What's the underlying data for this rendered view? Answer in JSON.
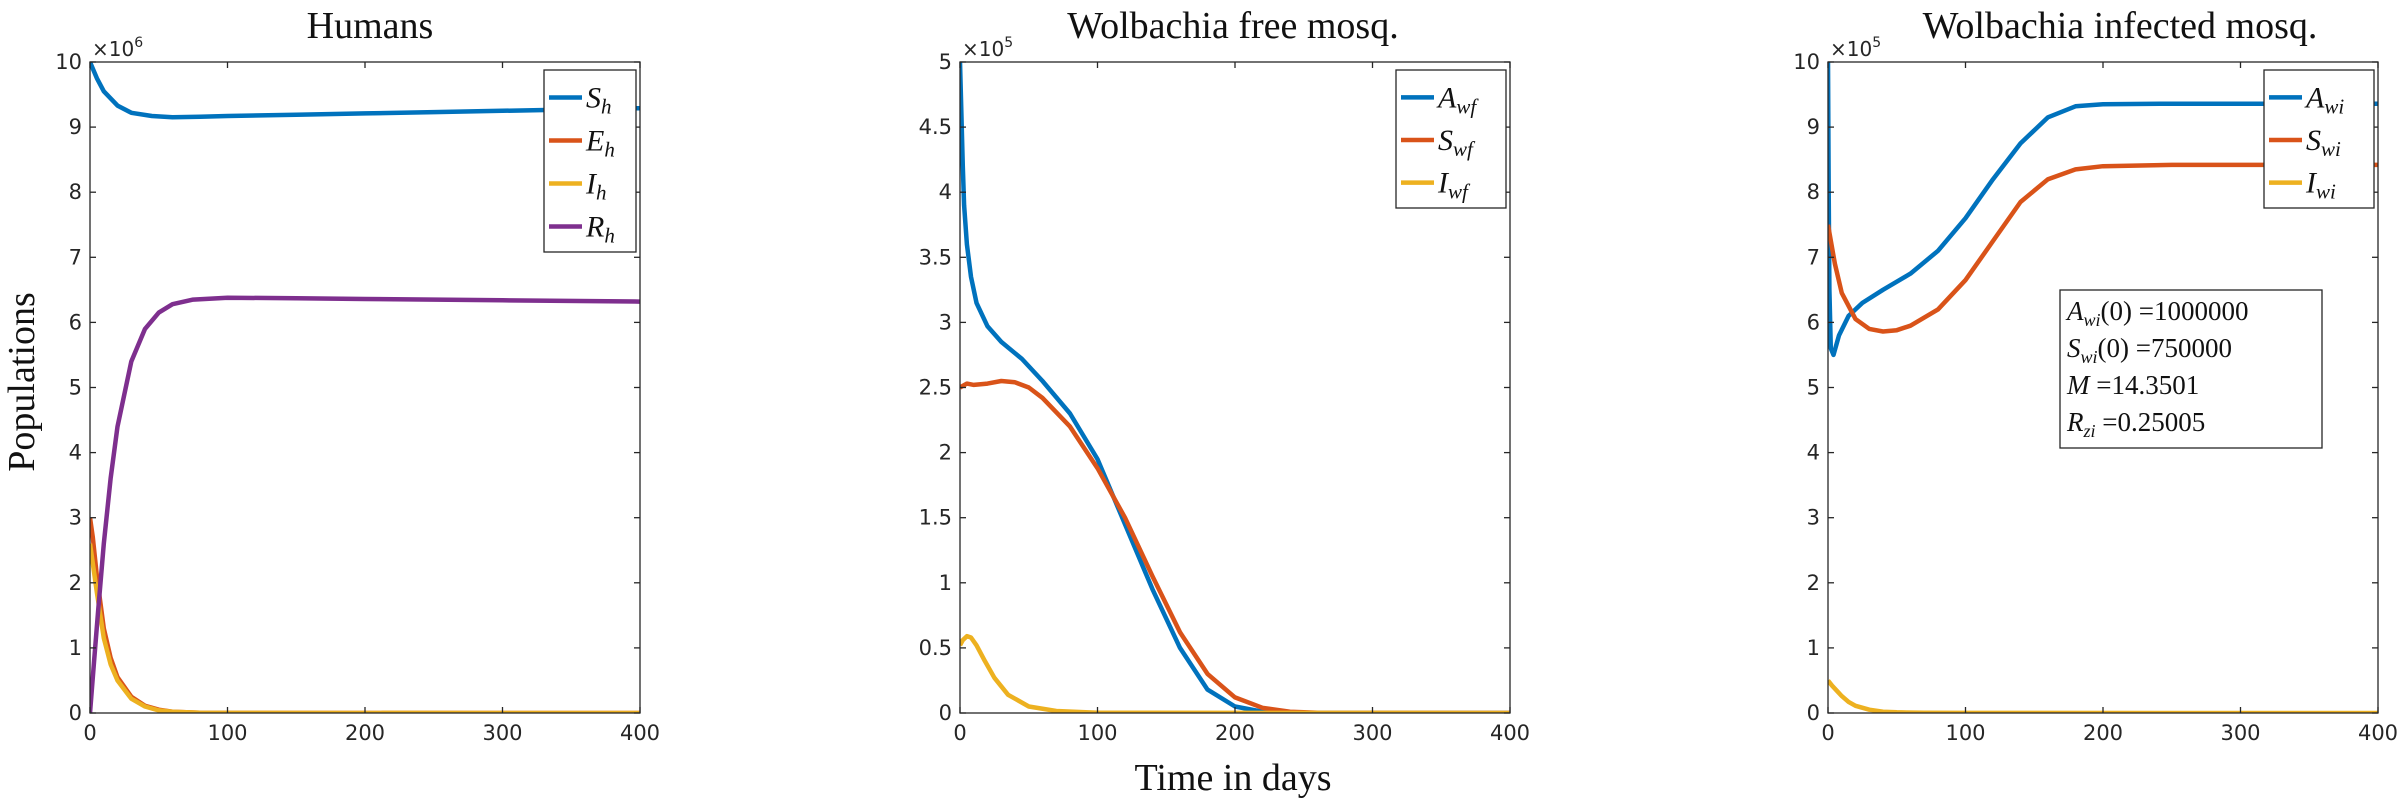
{
  "chart_data": [
    {
      "type": "line",
      "title": "Humans",
      "xlabel": "",
      "ylabel": "Populations",
      "xlim": [
        0,
        400
      ],
      "ylim": [
        0,
        10
      ],
      "y_exponent": "6",
      "xticks": [
        0,
        100,
        200,
        300,
        400
      ],
      "yticks": [
        0,
        1,
        2,
        3,
        4,
        5,
        6,
        7,
        8,
        9,
        10
      ],
      "legend": "top-right",
      "series": [
        {
          "name": "S",
          "sub": "h",
          "color": "#0072BD",
          "x": [
            0,
            5,
            10,
            20,
            30,
            45,
            60,
            80,
            100,
            150,
            200,
            250,
            300,
            350,
            400
          ],
          "y": [
            10,
            9.75,
            9.55,
            9.33,
            9.22,
            9.17,
            9.15,
            9.16,
            9.17,
            9.19,
            9.21,
            9.23,
            9.25,
            9.27,
            9.29
          ]
        },
        {
          "name": "E",
          "sub": "h",
          "color": "#D95319",
          "x": [
            0,
            2,
            5,
            10,
            15,
            20,
            30,
            40,
            50,
            60,
            80,
            100,
            400
          ],
          "y": [
            3.0,
            2.7,
            2.1,
            1.3,
            0.85,
            0.55,
            0.25,
            0.11,
            0.05,
            0.02,
            0.005,
            0.001,
            0
          ]
        },
        {
          "name": "I",
          "sub": "h",
          "color": "#EDB120",
          "x": [
            0,
            2,
            5,
            10,
            15,
            20,
            30,
            40,
            50,
            60,
            80,
            100,
            400
          ],
          "y": [
            2.6,
            2.3,
            1.85,
            1.15,
            0.75,
            0.5,
            0.22,
            0.1,
            0.04,
            0.02,
            0.005,
            0.001,
            0
          ]
        },
        {
          "name": "R",
          "sub": "h",
          "color": "#7E2F8E",
          "x": [
            0,
            3,
            6,
            10,
            15,
            20,
            30,
            40,
            50,
            60,
            75,
            100,
            150,
            200,
            300,
            400
          ],
          "y": [
            0,
            0.8,
            1.6,
            2.6,
            3.6,
            4.4,
            5.4,
            5.9,
            6.15,
            6.28,
            6.35,
            6.38,
            6.37,
            6.36,
            6.34,
            6.32
          ]
        }
      ]
    },
    {
      "type": "line",
      "title": "Wolbachia free mosq.",
      "xlabel": "Time in days",
      "ylabel": "",
      "xlim": [
        0,
        400
      ],
      "ylim": [
        0,
        5
      ],
      "y_exponent": "5",
      "xticks": [
        0,
        100,
        200,
        300,
        400
      ],
      "yticks": [
        0,
        0.5,
        1,
        1.5,
        2,
        2.5,
        3,
        3.5,
        4,
        4.5,
        5
      ],
      "legend": "top-right",
      "series": [
        {
          "name": "A",
          "sub": "wf",
          "color": "#0072BD",
          "x": [
            0,
            1,
            2,
            3,
            5,
            8,
            12,
            20,
            30,
            45,
            60,
            80,
            100,
            120,
            140,
            160,
            180,
            200,
            220,
            240,
            400
          ],
          "y": [
            5.0,
            4.6,
            4.2,
            3.9,
            3.6,
            3.35,
            3.15,
            2.97,
            2.85,
            2.72,
            2.55,
            2.3,
            1.95,
            1.45,
            0.95,
            0.5,
            0.18,
            0.05,
            0.01,
            0.002,
            0
          ]
        },
        {
          "name": "S",
          "sub": "wf",
          "color": "#D95319",
          "x": [
            0,
            5,
            10,
            20,
            30,
            40,
            50,
            60,
            80,
            100,
            120,
            140,
            160,
            180,
            200,
            220,
            240,
            260,
            400
          ],
          "y": [
            2.5,
            2.53,
            2.52,
            2.53,
            2.55,
            2.54,
            2.5,
            2.42,
            2.2,
            1.88,
            1.5,
            1.05,
            0.62,
            0.3,
            0.12,
            0.04,
            0.01,
            0.002,
            0
          ]
        },
        {
          "name": "I",
          "sub": "wf",
          "color": "#EDB120",
          "x": [
            0,
            2,
            5,
            8,
            12,
            18,
            25,
            35,
            50,
            70,
            100,
            400
          ],
          "y": [
            0.52,
            0.56,
            0.59,
            0.58,
            0.52,
            0.4,
            0.27,
            0.14,
            0.05,
            0.015,
            0.002,
            0
          ]
        }
      ]
    },
    {
      "type": "line",
      "title": "Wolbachia infected mosq.",
      "xlabel": "",
      "ylabel": "",
      "xlim": [
        0,
        400
      ],
      "ylim": [
        0,
        10
      ],
      "y_exponent": "5",
      "xticks": [
        0,
        100,
        200,
        300,
        400
      ],
      "yticks": [
        0,
        1,
        2,
        3,
        4,
        5,
        6,
        7,
        8,
        9,
        10
      ],
      "legend": "top-right",
      "series": [
        {
          "name": "A",
          "sub": "wi",
          "color": "#0072BD",
          "x": [
            0,
            0.5,
            1,
            2,
            4,
            8,
            15,
            25,
            40,
            60,
            80,
            100,
            120,
            140,
            160,
            180,
            200,
            250,
            300,
            400
          ],
          "y": [
            10.0,
            8.0,
            6.5,
            5.6,
            5.5,
            5.8,
            6.1,
            6.3,
            6.5,
            6.75,
            7.1,
            7.6,
            8.2,
            8.75,
            9.15,
            9.32,
            9.35,
            9.36,
            9.36,
            9.36
          ]
        },
        {
          "name": "S",
          "sub": "wi",
          "color": "#D95319",
          "x": [
            0,
            5,
            10,
            20,
            30,
            40,
            50,
            60,
            80,
            100,
            120,
            140,
            160,
            180,
            200,
            250,
            300,
            400
          ],
          "y": [
            7.5,
            6.9,
            6.45,
            6.05,
            5.9,
            5.86,
            5.88,
            5.95,
            6.2,
            6.65,
            7.25,
            7.85,
            8.2,
            8.35,
            8.4,
            8.42,
            8.42,
            8.42
          ]
        },
        {
          "name": "I",
          "sub": "wi",
          "color": "#EDB120",
          "x": [
            0,
            3,
            6,
            10,
            15,
            20,
            30,
            40,
            50,
            70,
            100,
            400
          ],
          "y": [
            0.5,
            0.42,
            0.35,
            0.26,
            0.17,
            0.11,
            0.05,
            0.02,
            0.01,
            0.003,
            0.001,
            0
          ]
        }
      ],
      "annotation": [
        {
          "sym": "A",
          "sub": "wi",
          "rest": "(0) =1000000"
        },
        {
          "sym": "S",
          "sub": "wi",
          "rest": "(0) =750000"
        },
        {
          "sym": "M",
          "sub": "",
          "rest": " =14.3501"
        },
        {
          "sym": "R",
          "sub": "zi",
          "rest": " =0.25005"
        }
      ]
    }
  ]
}
